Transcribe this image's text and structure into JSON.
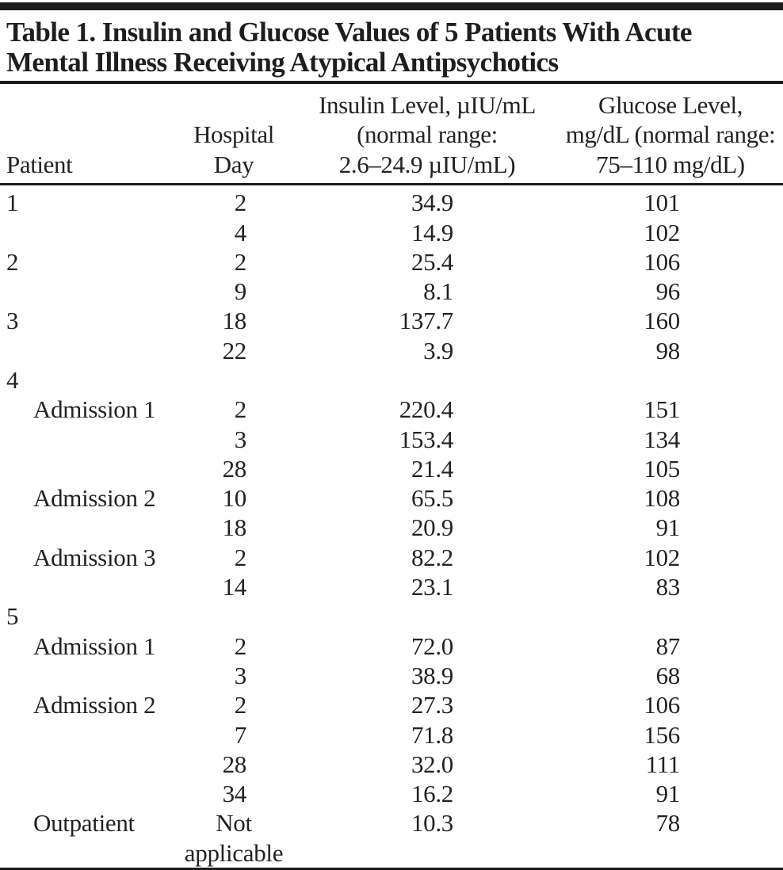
{
  "title": {
    "lines": [
      "Table 1. Insulin and Glucose Values of 5 Patients With Acute",
      "Mental Illness Receiving Atypical Antipsychotics"
    ],
    "full_text": "Table 1. Insulin and Glucose Values of 5 Patients With Acute Mental Illness Receiving Atypical Antipsychotics"
  },
  "colors": {
    "background": "#ffffff",
    "text": "#242122",
    "rule": "#1b1b1b"
  },
  "columns": [
    {
      "key": "patient",
      "lines": [
        "Patient"
      ]
    },
    {
      "key": "day",
      "lines": [
        "Hospital",
        "Day"
      ]
    },
    {
      "key": "insulin",
      "lines": [
        "Insulin Level, µIU/mL",
        "(normal range:",
        "2.6–24.9 µIU/mL)"
      ]
    },
    {
      "key": "glucose",
      "lines": [
        "Glucose Level,",
        "mg/dL (normal range:",
        "75–110 mg/dL)"
      ]
    }
  ],
  "rows": [
    {
      "patient": "1",
      "indent": false,
      "day": "2",
      "day_center": false,
      "insulin": "34.9",
      "glucose": "101"
    },
    {
      "patient": "",
      "indent": false,
      "day": "4",
      "day_center": false,
      "insulin": "14.9",
      "glucose": "102"
    },
    {
      "patient": "2",
      "indent": false,
      "day": "2",
      "day_center": false,
      "insulin": "25.4",
      "glucose": "106"
    },
    {
      "patient": "",
      "indent": false,
      "day": "9",
      "day_center": false,
      "insulin": "8.1",
      "glucose": "96"
    },
    {
      "patient": "3",
      "indent": false,
      "day": "18",
      "day_center": false,
      "insulin": "137.7",
      "glucose": "160"
    },
    {
      "patient": "",
      "indent": false,
      "day": "22",
      "day_center": false,
      "insulin": "3.9",
      "glucose": "98"
    },
    {
      "patient": "4",
      "indent": false,
      "day": "",
      "day_center": false,
      "insulin": "",
      "glucose": ""
    },
    {
      "patient": "Admission 1",
      "indent": true,
      "day": "2",
      "day_center": false,
      "insulin": "220.4",
      "glucose": "151"
    },
    {
      "patient": "",
      "indent": false,
      "day": "3",
      "day_center": false,
      "insulin": "153.4",
      "glucose": "134"
    },
    {
      "patient": "",
      "indent": false,
      "day": "28",
      "day_center": false,
      "insulin": "21.4",
      "glucose": "105"
    },
    {
      "patient": "Admission 2",
      "indent": true,
      "day": "10",
      "day_center": false,
      "insulin": "65.5",
      "glucose": "108"
    },
    {
      "patient": "",
      "indent": false,
      "day": "18",
      "day_center": false,
      "insulin": "20.9",
      "glucose": "91"
    },
    {
      "patient": "Admission 3",
      "indent": true,
      "day": "2",
      "day_center": false,
      "insulin": "82.2",
      "glucose": "102"
    },
    {
      "patient": "",
      "indent": false,
      "day": "14",
      "day_center": false,
      "insulin": "23.1",
      "glucose": "83"
    },
    {
      "patient": "5",
      "indent": false,
      "day": "",
      "day_center": false,
      "insulin": "",
      "glucose": ""
    },
    {
      "patient": "Admission 1",
      "indent": true,
      "day": "2",
      "day_center": false,
      "insulin": "72.0",
      "glucose": "87"
    },
    {
      "patient": "",
      "indent": false,
      "day": "3",
      "day_center": false,
      "insulin": "38.9",
      "glucose": "68"
    },
    {
      "patient": "Admission 2",
      "indent": true,
      "day": "2",
      "day_center": false,
      "insulin": "27.3",
      "glucose": "106"
    },
    {
      "patient": "",
      "indent": false,
      "day": "7",
      "day_center": false,
      "insulin": "71.8",
      "glucose": "156"
    },
    {
      "patient": "",
      "indent": false,
      "day": "28",
      "day_center": false,
      "insulin": "32.0",
      "glucose": "111"
    },
    {
      "patient": "",
      "indent": false,
      "day": "34",
      "day_center": false,
      "insulin": "16.2",
      "glucose": "91"
    },
    {
      "patient": "Outpatient",
      "indent": true,
      "day": "Not applicable",
      "day_center": true,
      "insulin": "10.3",
      "glucose": "78"
    }
  ]
}
